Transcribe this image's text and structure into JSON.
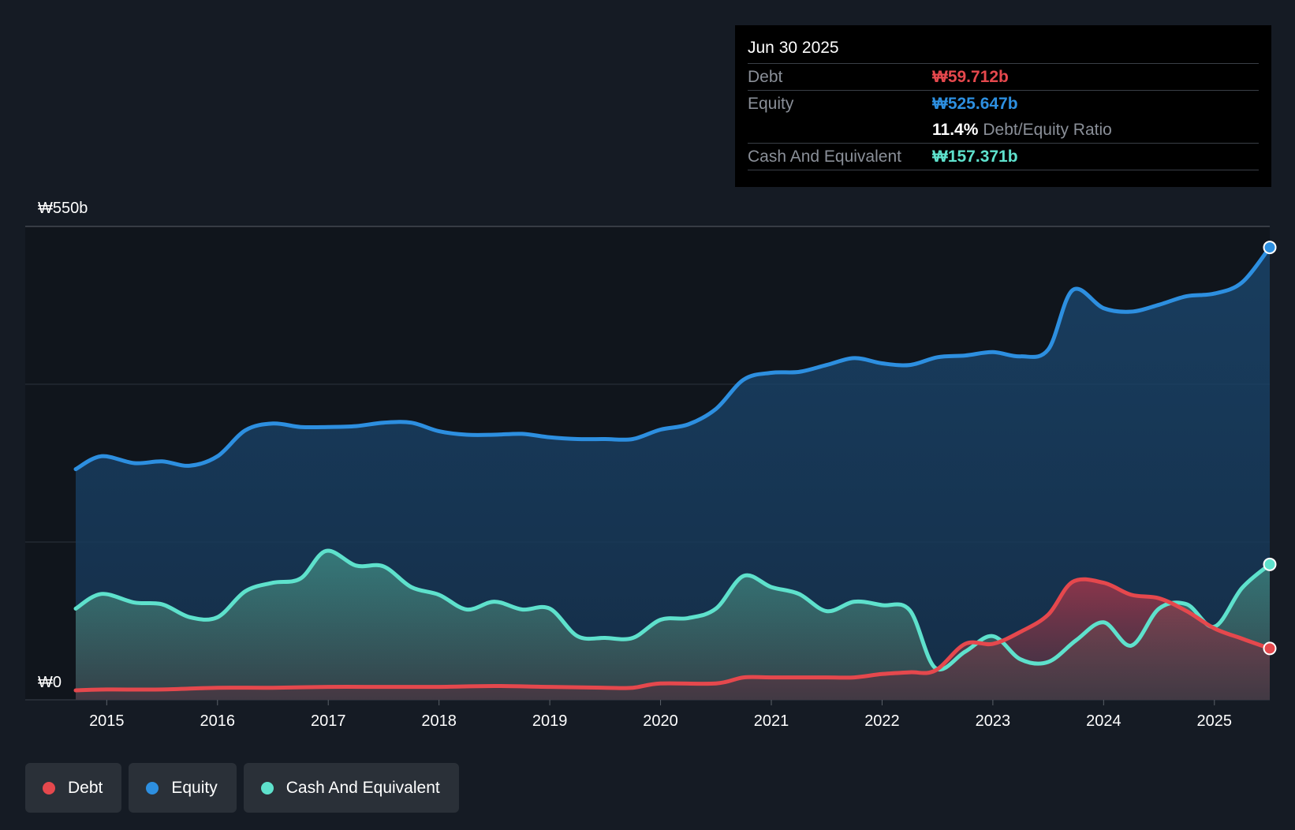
{
  "colors": {
    "debt": "#e5484d",
    "equity": "#2d8fe0",
    "cash": "#5ee1cc",
    "background": "#151b24"
  },
  "tooltip": {
    "date": "Jun 30 2025",
    "debt_label": "Debt",
    "debt_value": "₩59.712b",
    "equity_label": "Equity",
    "equity_value": "₩525.647b",
    "ratio_value": "11.4%",
    "ratio_label": "Debt/Equity Ratio",
    "cash_label": "Cash And Equivalent",
    "cash_value": "₩157.371b"
  },
  "legend": [
    {
      "label": "Debt",
      "color": "#e5484d"
    },
    {
      "label": "Equity",
      "color": "#2d8fe0"
    },
    {
      "label": "Cash And Equivalent",
      "color": "#5ee1cc"
    }
  ],
  "chart_data": {
    "type": "area",
    "title": "",
    "xlabel": "",
    "ylabel": "",
    "y_top_label": "₩550b",
    "y_bottom_label": "₩0",
    "ylim": [
      0,
      550
    ],
    "xlim": [
      2014.72,
      2025.5
    ],
    "x_ticks": [
      "2015",
      "2016",
      "2017",
      "2018",
      "2019",
      "2020",
      "2021",
      "2022",
      "2023",
      "2024",
      "2025"
    ],
    "grid": true,
    "series": [
      {
        "name": "Equity",
        "color": "#2d8fe0",
        "points": [
          [
            2014.72,
            268
          ],
          [
            2014.95,
            283
          ],
          [
            2015.25,
            275
          ],
          [
            2015.5,
            277
          ],
          [
            2015.75,
            272
          ],
          [
            2016.0,
            283
          ],
          [
            2016.25,
            313
          ],
          [
            2016.5,
            321
          ],
          [
            2016.75,
            317
          ],
          [
            2017.0,
            317
          ],
          [
            2017.25,
            318
          ],
          [
            2017.5,
            322
          ],
          [
            2017.75,
            322
          ],
          [
            2018.0,
            312
          ],
          [
            2018.25,
            308
          ],
          [
            2018.5,
            308
          ],
          [
            2018.75,
            309
          ],
          [
            2019.0,
            305
          ],
          [
            2019.25,
            303
          ],
          [
            2019.5,
            303
          ],
          [
            2019.75,
            303
          ],
          [
            2020.0,
            314
          ],
          [
            2020.25,
            320
          ],
          [
            2020.5,
            338
          ],
          [
            2020.75,
            372
          ],
          [
            2021.0,
            380
          ],
          [
            2021.25,
            381
          ],
          [
            2021.5,
            389
          ],
          [
            2021.75,
            397
          ],
          [
            2022.0,
            391
          ],
          [
            2022.25,
            389
          ],
          [
            2022.5,
            398
          ],
          [
            2022.75,
            400
          ],
          [
            2023.0,
            404
          ],
          [
            2023.25,
            399
          ],
          [
            2023.5,
            407
          ],
          [
            2023.72,
            476
          ],
          [
            2024.0,
            455
          ],
          [
            2024.25,
            451
          ],
          [
            2024.5,
            459
          ],
          [
            2024.75,
            469
          ],
          [
            2025.0,
            472
          ],
          [
            2025.25,
            485
          ],
          [
            2025.5,
            525.647
          ]
        ]
      },
      {
        "name": "Cash And Equivalent",
        "color": "#5ee1cc",
        "points": [
          [
            2014.72,
            106
          ],
          [
            2014.95,
            123
          ],
          [
            2015.25,
            113
          ],
          [
            2015.5,
            111
          ],
          [
            2015.75,
            96
          ],
          [
            2016.0,
            96
          ],
          [
            2016.25,
            126
          ],
          [
            2016.5,
            136
          ],
          [
            2016.75,
            141
          ],
          [
            2016.98,
            173
          ],
          [
            2017.25,
            156
          ],
          [
            2017.5,
            155
          ],
          [
            2017.75,
            131
          ],
          [
            2018.0,
            122
          ],
          [
            2018.25,
            105
          ],
          [
            2018.5,
            114
          ],
          [
            2018.75,
            105
          ],
          [
            2019.0,
            106
          ],
          [
            2019.25,
            74
          ],
          [
            2019.5,
            72
          ],
          [
            2019.75,
            72
          ],
          [
            2020.0,
            93
          ],
          [
            2020.25,
            95
          ],
          [
            2020.5,
            106
          ],
          [
            2020.75,
            144
          ],
          [
            2021.0,
            131
          ],
          [
            2021.25,
            123
          ],
          [
            2021.5,
            103
          ],
          [
            2021.75,
            114
          ],
          [
            2022.0,
            110
          ],
          [
            2022.25,
            104
          ],
          [
            2022.48,
            37
          ],
          [
            2022.75,
            56
          ],
          [
            2023.0,
            74
          ],
          [
            2023.25,
            47
          ],
          [
            2023.5,
            44
          ],
          [
            2023.75,
            69
          ],
          [
            2024.0,
            90
          ],
          [
            2024.25,
            63
          ],
          [
            2024.5,
            106
          ],
          [
            2024.75,
            111
          ],
          [
            2025.0,
            85
          ],
          [
            2025.25,
            130
          ],
          [
            2025.5,
            157.371
          ]
        ]
      },
      {
        "name": "Debt",
        "color": "#e5484d",
        "points": [
          [
            2014.72,
            11
          ],
          [
            2015.0,
            12
          ],
          [
            2015.5,
            12
          ],
          [
            2016.0,
            14
          ],
          [
            2016.5,
            14
          ],
          [
            2017.0,
            15
          ],
          [
            2017.5,
            15
          ],
          [
            2018.0,
            15
          ],
          [
            2018.5,
            16
          ],
          [
            2019.0,
            15
          ],
          [
            2019.5,
            14
          ],
          [
            2019.75,
            14
          ],
          [
            2020.0,
            19
          ],
          [
            2020.5,
            19
          ],
          [
            2020.75,
            26
          ],
          [
            2021.0,
            26
          ],
          [
            2021.5,
            26
          ],
          [
            2021.75,
            26
          ],
          [
            2022.0,
            30
          ],
          [
            2022.25,
            32
          ],
          [
            2022.48,
            34
          ],
          [
            2022.75,
            65
          ],
          [
            2023.0,
            65
          ],
          [
            2023.25,
            79
          ],
          [
            2023.5,
            99
          ],
          [
            2023.72,
            137
          ],
          [
            2024.0,
            136
          ],
          [
            2024.25,
            122
          ],
          [
            2024.5,
            118
          ],
          [
            2024.75,
            103
          ],
          [
            2025.0,
            83
          ],
          [
            2025.25,
            71
          ],
          [
            2025.5,
            59.712
          ]
        ]
      }
    ]
  }
}
